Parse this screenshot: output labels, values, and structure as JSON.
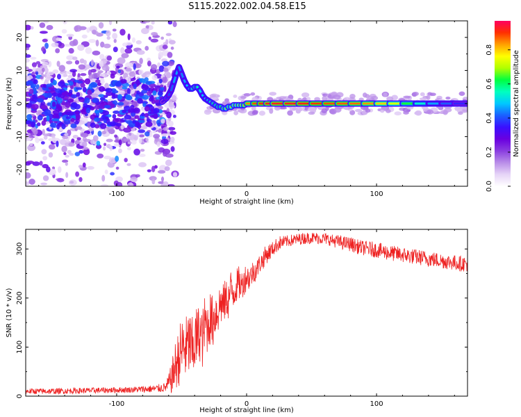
{
  "title": "S115.2022.002.04.58.E15",
  "chart_data": [
    {
      "type": "heatmap",
      "title": "S115.2022.002.04.58.E15",
      "xlabel": "Height of straight line (km)",
      "ylabel": "Frequency (Hz)",
      "xlim": [
        -170,
        170
      ],
      "ylim": [
        -25,
        25
      ],
      "xticks": [
        -100,
        0,
        100
      ],
      "xtick_labels": [
        "-100",
        "0",
        "100"
      ],
      "yticks": [
        -20,
        -10,
        0,
        10,
        20
      ],
      "ytick_labels": [
        "-20",
        "-10",
        "0",
        "10",
        "20"
      ],
      "colorbar": {
        "label": "Normalized spectral amplitude",
        "range": [
          0,
          0.97
        ],
        "ticks": [
          0.0,
          0.2,
          0.4,
          0.6,
          0.8
        ],
        "tick_labels": [
          "0.0",
          "0.2",
          "0.4",
          "0.6",
          "0.8"
        ],
        "colormap": [
          "#ffffff",
          "#e6d4f7",
          "#b98de8",
          "#8a3de0",
          "#6a00e0",
          "#3a10ff",
          "#1a60ff",
          "#00c8ff",
          "#00ffc0",
          "#00ff40",
          "#b0ff00",
          "#ffff00",
          "#ffa000",
          "#ff3000",
          "#ff0060"
        ]
      },
      "ridge": {
        "x": [
          -65,
          -62,
          -60,
          -58,
          -56,
          -54,
          -52,
          -50,
          -48,
          -46,
          -44,
          -42,
          -40,
          -38,
          -36,
          -34,
          -32,
          -30,
          -28,
          -26,
          -24,
          -22,
          -20,
          -18,
          -16,
          -14,
          -12,
          -10,
          -8,
          -6,
          -4,
          -2,
          0,
          5,
          10,
          15,
          20,
          30,
          40,
          50,
          60,
          70,
          80,
          90,
          100,
          110,
          120,
          130,
          140,
          150,
          160,
          170
        ],
        "y": [
          0.5,
          1.5,
          2.5,
          4,
          6.5,
          9,
          11,
          9,
          7,
          5.5,
          4.5,
          4.5,
          5,
          5,
          4,
          2.5,
          1.5,
          1,
          0.5,
          0,
          -0.5,
          -1,
          -1,
          -1.5,
          -1.5,
          -1,
          -1,
          -0.5,
          -0.5,
          -0.5,
          -0.5,
          -0.5,
          0,
          0,
          0,
          0,
          0,
          0,
          0,
          0,
          0,
          0,
          0,
          0,
          0,
          0,
          0,
          0,
          0,
          0,
          0,
          0
        ],
        "amplitude": [
          0.3,
          0.35,
          0.4,
          0.4,
          0.45,
          0.5,
          0.45,
          0.45,
          0.45,
          0.5,
          0.5,
          0.55,
          0.6,
          0.6,
          0.55,
          0.5,
          0.5,
          0.5,
          0.55,
          0.6,
          0.6,
          0.6,
          0.65,
          0.65,
          0.7,
          0.7,
          0.7,
          0.75,
          0.75,
          0.8,
          0.8,
          0.85,
          0.85,
          0.9,
          0.92,
          0.95,
          0.95,
          0.95,
          0.95,
          0.93,
          0.92,
          0.9,
          0.9,
          0.88,
          0.85,
          0.8,
          0.7,
          0.6,
          0.5,
          0.45,
          0.4,
          0.35
        ]
      }
    },
    {
      "type": "line",
      "xlabel": "Height of straight line (km)",
      "ylabel": "SNR (10 * v/v)",
      "xlim": [
        -170,
        170
      ],
      "ylim": [
        0,
        340
      ],
      "xticks": [
        -100,
        0,
        100
      ],
      "xtick_labels": [
        "-100",
        "0",
        "100"
      ],
      "yticks": [
        0,
        100,
        200,
        300
      ],
      "ytick_labels": [
        "0",
        "100",
        "200",
        "300"
      ],
      "color": "#ee2222",
      "series": [
        {
          "x": [
            -170,
            -150,
            -130,
            -110,
            -90,
            -70,
            -62,
            -58,
            -55,
            -52,
            -50,
            -48,
            -46,
            -44,
            -42,
            -40,
            -38,
            -36,
            -34,
            -32,
            -30,
            -28,
            -26,
            -24,
            -22,
            -20,
            -18,
            -16,
            -14,
            -12,
            -10,
            -8,
            -6,
            -4,
            -2,
            0,
            2,
            4,
            6,
            8,
            10,
            12,
            14,
            16,
            18,
            20,
            22,
            25,
            30,
            35,
            40,
            45,
            50,
            55,
            60,
            65,
            70,
            75,
            80,
            85,
            90,
            95,
            100,
            105,
            110,
            115,
            120,
            125,
            130,
            135,
            140,
            145,
            150,
            155,
            160,
            165,
            170
          ],
          "y": [
            10,
            10,
            11,
            12,
            13,
            15,
            18,
            35,
            60,
            80,
            95,
            100,
            95,
            110,
            90,
            110,
            120,
            130,
            115,
            150,
            140,
            160,
            150,
            170,
            175,
            190,
            185,
            200,
            195,
            220,
            210,
            225,
            230,
            225,
            235,
            245,
            240,
            250,
            255,
            260,
            270,
            275,
            285,
            290,
            295,
            300,
            305,
            312,
            315,
            318,
            320,
            322,
            323,
            322,
            321,
            318,
            315,
            312,
            310,
            305,
            302,
            300,
            298,
            295,
            292,
            290,
            288,
            286,
            284,
            282,
            280,
            278,
            276,
            274,
            272,
            270,
            270
          ],
          "noise": [
            6,
            6,
            6,
            6,
            6,
            8,
            10,
            30,
            50,
            60,
            70,
            70,
            70,
            70,
            70,
            70,
            65,
            60,
            60,
            60,
            55,
            55,
            55,
            50,
            50,
            45,
            45,
            40,
            40,
            40,
            35,
            35,
            35,
            30,
            30,
            30,
            25,
            25,
            25,
            20,
            20,
            20,
            20,
            18,
            18,
            15,
            15,
            15,
            12,
            12,
            12,
            12,
            12,
            12,
            12,
            12,
            14,
            14,
            15,
            15,
            15,
            16,
            16,
            16,
            16,
            16,
            16,
            16,
            16,
            16,
            16,
            16,
            16,
            16,
            16,
            16,
            16
          ]
        }
      ]
    }
  ]
}
